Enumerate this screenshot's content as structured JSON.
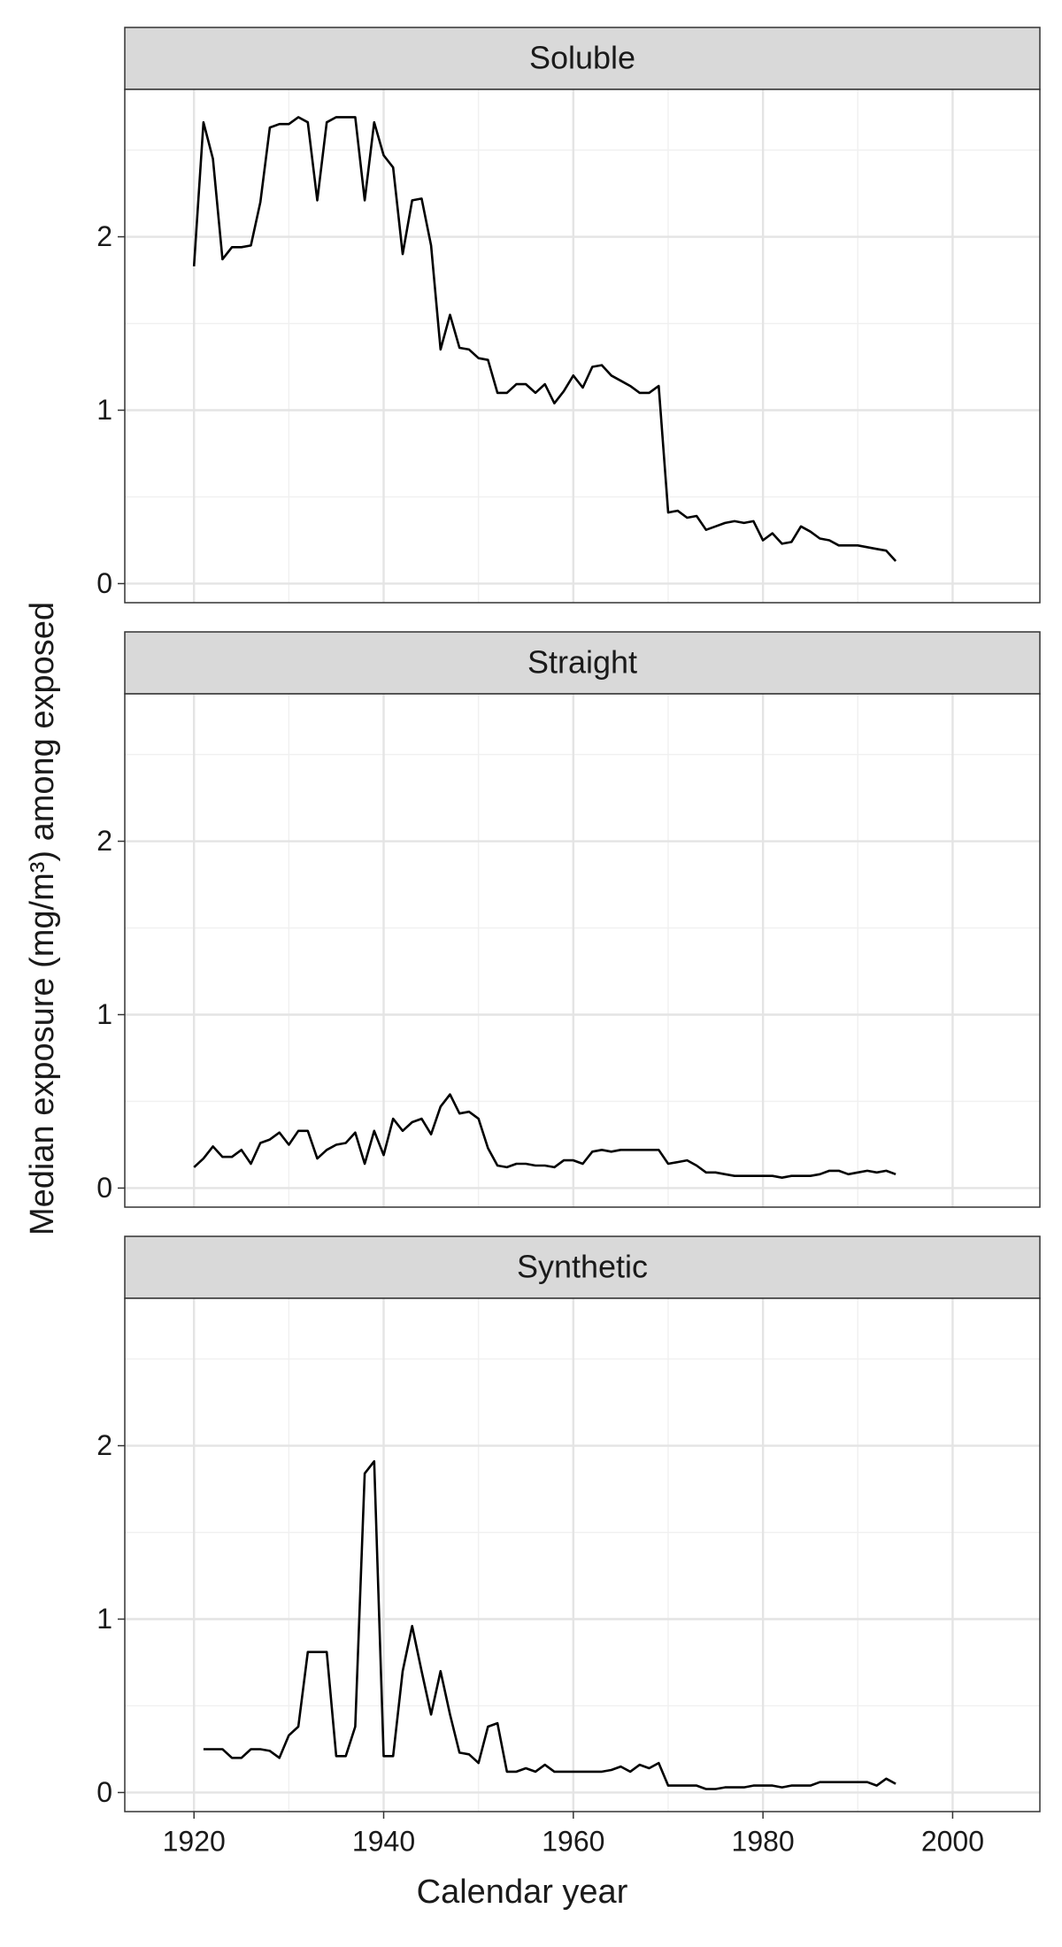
{
  "chart_data": {
    "type": "line",
    "xlabel": "Calendar year",
    "ylabel": "Median exposure (mg/m³) among exposed",
    "xlim": [
      1912.7,
      2009.2
    ],
    "ylim": [
      -0.11,
      2.85
    ],
    "xticks": [
      1920,
      1940,
      1960,
      1980,
      2000
    ],
    "yticks": [
      0,
      1,
      2
    ],
    "minor_xticks": [
      1930,
      1950,
      1970,
      1990
    ],
    "minor_yticks": [
      0.5,
      1.5,
      2.5
    ],
    "grid": true,
    "color": "#000000",
    "panels": [
      {
        "title": "Soluble",
        "x": [
          1920,
          1921,
          1922,
          1923,
          1924,
          1925,
          1926,
          1927,
          1928,
          1929,
          1930,
          1931,
          1932,
          1933,
          1934,
          1935,
          1936,
          1937,
          1938,
          1939,
          1940,
          1941,
          1942,
          1943,
          1944,
          1945,
          1946,
          1947,
          1948,
          1949,
          1950,
          1951,
          1952,
          1953,
          1954,
          1955,
          1956,
          1957,
          1958,
          1959,
          1960,
          1961,
          1962,
          1963,
          1964,
          1965,
          1966,
          1967,
          1968,
          1969,
          1970,
          1971,
          1972,
          1973,
          1974,
          1975,
          1976,
          1977,
          1978,
          1979,
          1980,
          1981,
          1982,
          1983,
          1984,
          1985,
          1986,
          1987,
          1988,
          1989,
          1990,
          1991,
          1992,
          1993,
          1994
        ],
        "values": [
          1.83,
          2.66,
          2.45,
          1.87,
          1.94,
          1.94,
          1.95,
          2.2,
          2.63,
          2.65,
          2.65,
          2.69,
          2.66,
          2.21,
          2.66,
          2.69,
          2.69,
          2.69,
          2.21,
          2.66,
          2.47,
          2.4,
          1.9,
          2.21,
          2.22,
          1.95,
          1.35,
          1.55,
          1.36,
          1.35,
          1.3,
          1.29,
          1.1,
          1.1,
          1.15,
          1.15,
          1.1,
          1.15,
          1.04,
          1.11,
          1.2,
          1.13,
          1.25,
          1.26,
          1.2,
          1.17,
          1.14,
          1.1,
          1.1,
          1.14,
          0.41,
          0.42,
          0.38,
          0.39,
          0.31,
          0.33,
          0.35,
          0.36,
          0.35,
          0.36,
          0.25,
          0.29,
          0.23,
          0.24,
          0.33,
          0.3,
          0.26,
          0.25,
          0.22,
          0.22,
          0.22,
          0.21,
          0.2,
          0.19,
          0.13
        ]
      },
      {
        "title": "Straight",
        "x": [
          1920,
          1921,
          1922,
          1923,
          1924,
          1925,
          1926,
          1927,
          1928,
          1929,
          1930,
          1931,
          1932,
          1933,
          1934,
          1935,
          1936,
          1937,
          1938,
          1939,
          1940,
          1941,
          1942,
          1943,
          1944,
          1945,
          1946,
          1947,
          1948,
          1949,
          1950,
          1951,
          1952,
          1953,
          1954,
          1955,
          1956,
          1957,
          1958,
          1959,
          1960,
          1961,
          1962,
          1963,
          1964,
          1965,
          1966,
          1967,
          1968,
          1969,
          1970,
          1971,
          1972,
          1973,
          1974,
          1975,
          1976,
          1977,
          1978,
          1979,
          1980,
          1981,
          1982,
          1983,
          1984,
          1985,
          1986,
          1987,
          1988,
          1989,
          1990,
          1991,
          1992,
          1993,
          1994
        ],
        "values": [
          0.12,
          0.17,
          0.24,
          0.18,
          0.18,
          0.22,
          0.14,
          0.26,
          0.28,
          0.32,
          0.25,
          0.33,
          0.33,
          0.17,
          0.22,
          0.25,
          0.26,
          0.32,
          0.14,
          0.33,
          0.19,
          0.4,
          0.33,
          0.38,
          0.4,
          0.31,
          0.47,
          0.54,
          0.43,
          0.44,
          0.4,
          0.23,
          0.13,
          0.12,
          0.14,
          0.14,
          0.13,
          0.13,
          0.12,
          0.16,
          0.16,
          0.14,
          0.21,
          0.22,
          0.21,
          0.22,
          0.22,
          0.22,
          0.22,
          0.22,
          0.14,
          0.15,
          0.16,
          0.13,
          0.09,
          0.09,
          0.08,
          0.07,
          0.07,
          0.07,
          0.07,
          0.07,
          0.06,
          0.07,
          0.07,
          0.07,
          0.08,
          0.1,
          0.1,
          0.08,
          0.09,
          0.1,
          0.09,
          0.1,
          0.08
        ]
      },
      {
        "title": "Synthetic",
        "x": [
          1921,
          1922,
          1923,
          1924,
          1925,
          1926,
          1927,
          1928,
          1929,
          1930,
          1931,
          1932,
          1933,
          1934,
          1935,
          1936,
          1937,
          1938,
          1939,
          1940,
          1941,
          1942,
          1943,
          1944,
          1945,
          1946,
          1947,
          1948,
          1949,
          1950,
          1951,
          1952,
          1953,
          1954,
          1955,
          1956,
          1957,
          1958,
          1959,
          1960,
          1961,
          1962,
          1963,
          1964,
          1965,
          1966,
          1967,
          1968,
          1969,
          1970,
          1971,
          1972,
          1973,
          1974,
          1975,
          1976,
          1977,
          1978,
          1979,
          1980,
          1981,
          1982,
          1983,
          1984,
          1985,
          1986,
          1987,
          1988,
          1989,
          1990,
          1991,
          1992,
          1993,
          1994
        ],
        "values": [
          0.25,
          0.25,
          0.25,
          0.2,
          0.2,
          0.25,
          0.25,
          0.24,
          0.2,
          0.33,
          0.38,
          0.81,
          0.81,
          0.81,
          0.21,
          0.21,
          0.38,
          1.84,
          1.91,
          0.21,
          0.21,
          0.7,
          0.96,
          0.7,
          0.45,
          0.7,
          0.45,
          0.23,
          0.22,
          0.17,
          0.38,
          0.4,
          0.12,
          0.12,
          0.14,
          0.12,
          0.16,
          0.12,
          0.12,
          0.12,
          0.12,
          0.12,
          0.12,
          0.13,
          0.15,
          0.12,
          0.16,
          0.14,
          0.17,
          0.04,
          0.04,
          0.04,
          0.04,
          0.02,
          0.02,
          0.03,
          0.03,
          0.03,
          0.04,
          0.04,
          0.04,
          0.03,
          0.04,
          0.04,
          0.04,
          0.06,
          0.06,
          0.06,
          0.06,
          0.06,
          0.06,
          0.04,
          0.08,
          0.05
        ]
      }
    ]
  }
}
